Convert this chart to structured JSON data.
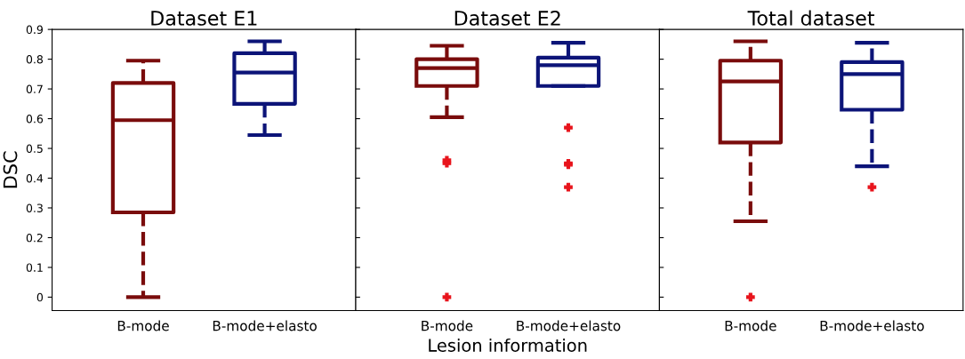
{
  "chart_data": [
    {
      "type": "box",
      "title": "Dataset E1",
      "ylabel": "DSC",
      "categories": [
        "B-mode",
        "B-mode+elasto"
      ],
      "colors": [
        "#7a0c0c",
        "#0c1478"
      ],
      "ylim": [
        -0.045,
        0.9
      ],
      "yticks": [
        0,
        0.1,
        0.2,
        0.3,
        0.4,
        0.5,
        0.6,
        0.7,
        0.8,
        0.9
      ],
      "line_style": "dashed",
      "boxes": [
        {
          "low": 0,
          "q1": 0.285,
          "median": 0.595,
          "q3": 0.72,
          "high": 0.795
        },
        {
          "low": 0.545,
          "q1": 0.65,
          "median": 0.755,
          "q3": 0.82,
          "high": 0.86
        }
      ]
    },
    {
      "type": "box",
      "title": "Dataset E2",
      "xlabel": "Lesion information",
      "categories": [
        "B-mode",
        "B-mode+elasto"
      ],
      "colors": [
        "#7a0c0c",
        "#0c1478"
      ],
      "ylim": [
        -0.045,
        0.9
      ],
      "yticks": [
        0,
        0.1,
        0.2,
        0.3,
        0.4,
        0.5,
        0.6,
        0.7,
        0.8,
        0.9
      ],
      "tick_labels": "x",
      "line_style": "dashed",
      "boxes": [
        {
          "low": 0.605,
          "q1": 0.71,
          "median": 0.77,
          "q3": 0.8,
          "high": 0.845,
          "outliers": [
            0.46,
            0.45,
            0
          ]
        },
        {
          "low": 0.71,
          "q1": 0.71,
          "median": 0.78,
          "q3": 0.805,
          "high": 0.855,
          "outliers": [
            0.57,
            0.45,
            0.445,
            0.37
          ]
        }
      ]
    },
    {
      "type": "box",
      "title": "Total dataset",
      "categories": [
        "B-mode",
        "B-mode+elasto"
      ],
      "colors": [
        "#7a0c0c",
        "#0c1478"
      ],
      "ylim": [
        -0.045,
        0.9
      ],
      "yticks": [
        0,
        0.1,
        0.2,
        0.3,
        0.4,
        0.5,
        0.6,
        0.7,
        0.8,
        0.9
      ],
      "tick_labels": "x",
      "line_style": "dashed",
      "boxes": [
        {
          "low": 0.255,
          "q1": 0.52,
          "median": 0.725,
          "q3": 0.795,
          "high": 0.86,
          "outliers": [
            0
          ]
        },
        {
          "low": 0.44,
          "q1": 0.63,
          "median": 0.75,
          "q3": 0.79,
          "high": 0.855,
          "outliers": [
            0.37
          ]
        }
      ]
    }
  ]
}
